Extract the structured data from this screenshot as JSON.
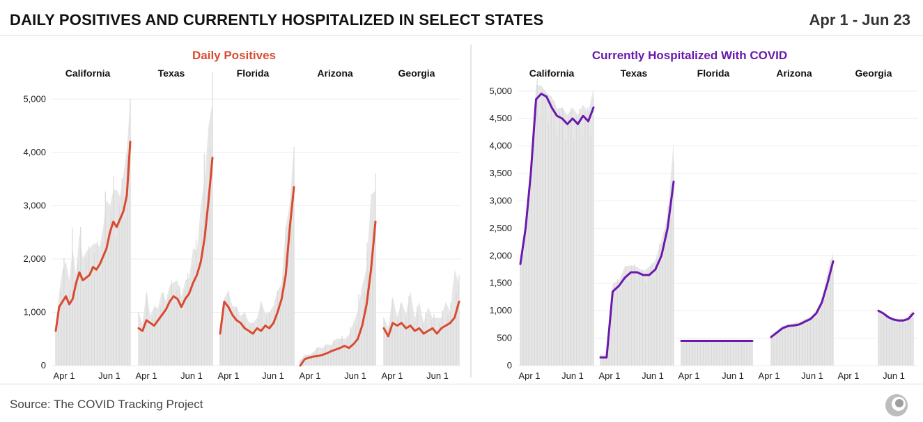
{
  "header": {
    "title": "DAILY POSITIVES AND CURRENTLY HOSPITALIZED IN SELECT STATES",
    "date_range": "Apr 1 - Jun 23"
  },
  "footer": {
    "source": "Source: The COVID Tracking Project"
  },
  "colors": {
    "positives": "#d94a32",
    "hospitalized": "#6a18ad",
    "raw_bars": "#e6e6e6",
    "gridline": "#ececec",
    "divider": "#cccccc"
  },
  "chart_data": [
    {
      "type": "area",
      "title": "Daily Positives",
      "ylim": [
        0,
        5500
      ],
      "yticks": [
        0,
        1000,
        2000,
        3000,
        4000,
        5000
      ],
      "ytick_labels": [
        "0",
        "1,000",
        "2,000",
        "3,000",
        "4,000",
        "5,000"
      ],
      "xtick_labels": [
        "Apr 1",
        "Jun 1"
      ],
      "series": [
        {
          "name": "California",
          "rolling_avg": [
            650,
            1100,
            1200,
            1300,
            1150,
            1250,
            1550,
            1750,
            1600,
            1650,
            1700,
            1850,
            1800,
            1900,
            2050,
            2200,
            2500,
            2700,
            2600,
            2750,
            2900,
            3200,
            4200
          ],
          "raw_peak": [
            700,
            1500,
            1800,
            2300,
            1600,
            2700,
            1700,
            2900,
            2000,
            2400,
            2200,
            2500,
            2300,
            2400,
            2600,
            3600,
            3000,
            3600,
            3300,
            3400,
            3600,
            4500,
            5000
          ]
        },
        {
          "name": "Texas",
          "rolling_avg": [
            700,
            650,
            850,
            800,
            750,
            850,
            950,
            1050,
            1200,
            1300,
            1250,
            1100,
            1250,
            1350,
            1550,
            1700,
            1950,
            2400,
            3100,
            3900
          ],
          "raw_peak": [
            1000,
            850,
            1400,
            1000,
            1100,
            1200,
            1400,
            1300,
            1500,
            1700,
            1600,
            1400,
            1600,
            1800,
            2200,
            2400,
            3000,
            4100,
            4500,
            5500
          ]
        },
        {
          "name": "Florida",
          "rolling_avg": [
            600,
            1200,
            1100,
            950,
            850,
            800,
            700,
            650,
            600,
            700,
            650,
            750,
            700,
            800,
            1000,
            1250,
            1700,
            2600,
            3350
          ],
          "raw_peak": [
            700,
            1300,
            1400,
            1200,
            1100,
            1000,
            1000,
            900,
            800,
            1000,
            1200,
            1100,
            1000,
            1300,
            1400,
            1700,
            2600,
            3300,
            4100
          ]
        },
        {
          "name": "Arizona",
          "rolling_avg": [
            0,
            120,
            150,
            170,
            180,
            200,
            230,
            270,
            300,
            330,
            370,
            330,
            400,
            500,
            750,
            1150,
            1800,
            2700
          ],
          "raw_peak": [
            100,
            250,
            200,
            300,
            350,
            400,
            400,
            450,
            500,
            600,
            500,
            700,
            800,
            1300,
            1500,
            2200,
            3200,
            3600
          ]
        },
        {
          "name": "Georgia",
          "rolling_avg": [
            700,
            550,
            800,
            750,
            800,
            700,
            750,
            650,
            700,
            600,
            650,
            700,
            600,
            700,
            750,
            800,
            900,
            1200
          ],
          "raw_peak": [
            900,
            800,
            1300,
            1000,
            1200,
            1100,
            1400,
            1000,
            1200,
            900,
            1100,
            1000,
            900,
            1000,
            1200,
            1100,
            1800,
            1700
          ]
        }
      ]
    },
    {
      "type": "area",
      "title": "Currently Hospitalized With COVID",
      "ylim": [
        0,
        5200
      ],
      "yticks": [
        0,
        500,
        1000,
        1500,
        2000,
        2500,
        3000,
        3500,
        4000,
        4500,
        5000
      ],
      "ytick_labels": [
        "0",
        "500",
        "1,000",
        "1,500",
        "2,000",
        "2,500",
        "3,000",
        "3,500",
        "4,000",
        "4,500",
        "5,000"
      ],
      "xtick_labels": [
        "Apr 1",
        "Jun 1"
      ],
      "series": [
        {
          "name": "California",
          "rolling_avg": [
            1850,
            2500,
            3500,
            4850,
            4950,
            4900,
            4700,
            4550,
            4500,
            4400,
            4500,
            4400,
            4550,
            4450,
            4700
          ],
          "raw_peak": [
            1900,
            2600,
            3600,
            5250,
            5100,
            5000,
            4900,
            4750,
            4700,
            4650,
            4700,
            4650,
            4750,
            4700,
            5050
          ]
        },
        {
          "name": "Texas",
          "rolling_avg": [
            150,
            150,
            1350,
            1450,
            1600,
            1700,
            1700,
            1650,
            1650,
            1750,
            2000,
            2500,
            3350
          ],
          "raw_peak": [
            200,
            200,
            1500,
            1600,
            1800,
            1900,
            1800,
            1750,
            1800,
            2000,
            2300,
            2800,
            4100
          ]
        },
        {
          "name": "Florida",
          "rolling_avg": [
            450,
            450,
            450
          ],
          "raw_peak": [
            460,
            460,
            460
          ]
        },
        {
          "name": "Arizona",
          "rolling_avg": [
            520,
            600,
            680,
            720,
            730,
            750,
            800,
            850,
            950,
            1150,
            1500,
            1900
          ],
          "raw_peak": [
            560,
            650,
            720,
            760,
            780,
            800,
            850,
            900,
            1000,
            1250,
            1700,
            2150
          ]
        },
        {
          "name": "Georgia",
          "rolling_avg": [
            1000,
            950,
            880,
            840,
            820,
            820,
            850,
            950
          ],
          "raw_peak": [
            1000,
            980,
            920,
            880,
            860,
            860,
            900,
            1050
          ]
        }
      ]
    }
  ]
}
